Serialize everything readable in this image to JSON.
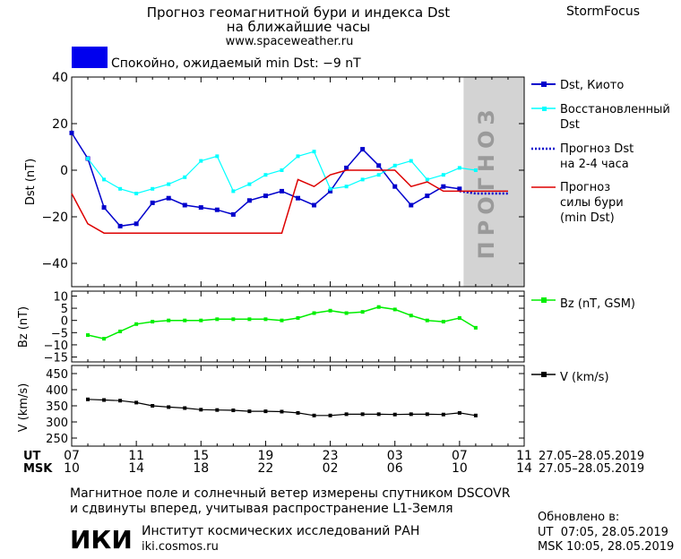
{
  "header": {
    "title_line1": "Прогноз геомагнитной бури и индекса Dst",
    "title_line2": "на ближайшие часы",
    "site": "www.spaceweather.ru",
    "brand": "StormFocus"
  },
  "status": {
    "text": "Спокойно, ожидаемый min Dst: −9 nT",
    "color": "#0000ee"
  },
  "forecast_label": "ПРОГНОЗ",
  "legend": {
    "dst_kyoto": "Dst, Киото",
    "restored_1": "Восстановленный",
    "restored_2": "Dst",
    "forecast_dst_1": "Прогноз Dst",
    "forecast_dst_2": "на 2-4 часа",
    "storm_1": "Прогноз",
    "storm_2": "силы бури",
    "storm_3": "(min Dst)",
    "bz": "Bz (nT, GSM)",
    "v": "V (km/s)"
  },
  "axes": {
    "ut_label": "UT",
    "msk_label": "MSK",
    "ut_ticks": [
      "07",
      "11",
      "15",
      "19",
      "23",
      "03",
      "07",
      "11"
    ],
    "msk_ticks": [
      "10",
      "14",
      "18",
      "22",
      "02",
      "06",
      "10",
      "14"
    ],
    "date_range_ut": "27.05–28.05.2019",
    "date_range_msk": "27.05–28.05.2019"
  },
  "footer": {
    "note1": "Магнитное поле и солнечный ветер измерены спутником DSCOVR",
    "note2": "и сдвинуты вперед, учитывая распространение L1-Земля",
    "institute": "Институт космических исследований РАН",
    "institute_site": "iki.cosmos.ru",
    "logo_text": "ИКИ",
    "updated_label": "Обновлено в:",
    "updated_ut": "UT  07:05, 28.05.2019",
    "updated_msk": "MSK 10:05, 28.05.2019"
  },
  "colors": {
    "dst": "#0000cc",
    "restored": "#00ffff",
    "forecast": "#0000cc",
    "storm": "#dd0000",
    "bz": "#00ee00",
    "v": "#000000",
    "forecast_zone": "#d3d3d3"
  },
  "chart_data": [
    {
      "type": "line",
      "name": "dst",
      "xlim": [
        0,
        28
      ],
      "ylim": [
        -50,
        40
      ],
      "yticks": [
        40,
        20,
        0,
        -20,
        -40
      ],
      "ylabel": "Dst (nT)",
      "forecast_zone": [
        24.25,
        28
      ],
      "series": [
        {
          "name": "Dst, Киото",
          "x": [
            0,
            1,
            2,
            3,
            4,
            5,
            6,
            7,
            8,
            9,
            10,
            11,
            12,
            13,
            14,
            15,
            16,
            17,
            18,
            19,
            20,
            21,
            22,
            23,
            24
          ],
          "y": [
            16,
            5,
            -16,
            -24,
            -23,
            -14,
            -12,
            -15,
            -16,
            -17,
            -19,
            -13,
            -11,
            -9,
            -12,
            -15,
            -9,
            1,
            9,
            2,
            -7,
            -15,
            -11,
            -7,
            -8
          ]
        },
        {
          "name": "Восстановленный Dst",
          "x": [
            1,
            2,
            3,
            4,
            5,
            6,
            7,
            8,
            9,
            10,
            11,
            12,
            13,
            14,
            15,
            16,
            17,
            18,
            19,
            20,
            21,
            22,
            23,
            24,
            25
          ],
          "y": [
            5,
            -4,
            -8,
            -10,
            -8,
            -6,
            -3,
            4,
            6,
            -9,
            -6,
            -2,
            0,
            6,
            8,
            -8,
            -7,
            -4,
            -2,
            2,
            4,
            -4,
            -2,
            1,
            0
          ]
        },
        {
          "name": "Прогноз Dst на 2-4 часа",
          "x": [
            24,
            25,
            26,
            27
          ],
          "y": [
            -9,
            -10,
            -10,
            -10
          ]
        },
        {
          "name": "Прогноз силы бури (min Dst)",
          "x": [
            0,
            1,
            2,
            3,
            4,
            5,
            6,
            7,
            8,
            9,
            10,
            11,
            12,
            13,
            14,
            15,
            16,
            17,
            18,
            19,
            20,
            21,
            22,
            23,
            24,
            25,
            26,
            27
          ],
          "y": [
            -10,
            -23,
            -27,
            -27,
            -27,
            -27,
            -27,
            -27,
            -27,
            -27,
            -27,
            -27,
            -27,
            -27,
            -4,
            -7,
            -2,
            0,
            0,
            0,
            0,
            -7,
            -5,
            -9,
            -9,
            -9,
            -9,
            -9
          ]
        }
      ]
    },
    {
      "type": "line",
      "name": "bz",
      "xlim": [
        0,
        28
      ],
      "ylim": [
        -17,
        12
      ],
      "yticks": [
        10,
        5,
        0,
        -5,
        -10,
        -15
      ],
      "ylabel": "Bz (nT)",
      "series": [
        {
          "name": "Bz (nT, GSM)",
          "x": [
            1,
            2,
            3,
            4,
            5,
            6,
            7,
            8,
            9,
            10,
            11,
            12,
            13,
            14,
            15,
            16,
            17,
            18,
            19,
            20,
            21,
            22,
            23,
            24,
            25
          ],
          "y": [
            -6,
            -7.5,
            -4.5,
            -1.5,
            -0.5,
            0,
            0,
            0,
            0.5,
            0.5,
            0.5,
            0.5,
            0,
            1,
            3,
            4,
            3,
            3.5,
            5.5,
            4.5,
            2,
            0,
            -0.5,
            1,
            -3
          ]
        }
      ]
    },
    {
      "type": "line",
      "name": "v",
      "xlim": [
        0,
        28
      ],
      "ylim": [
        225,
        475
      ],
      "yticks": [
        450,
        400,
        350,
        300,
        250
      ],
      "ylabel": "V (km/s)",
      "series": [
        {
          "name": "V (km/s)",
          "x": [
            1,
            2,
            3,
            4,
            5,
            6,
            7,
            8,
            9,
            10,
            11,
            12,
            13,
            14,
            15,
            16,
            17,
            18,
            19,
            20,
            21,
            22,
            23,
            24,
            25
          ],
          "y": [
            370,
            368,
            366,
            360,
            350,
            346,
            343,
            338,
            337,
            336,
            333,
            333,
            332,
            328,
            320,
            320,
            324,
            324,
            324,
            323,
            324,
            324,
            323,
            328,
            320
          ]
        }
      ]
    }
  ]
}
